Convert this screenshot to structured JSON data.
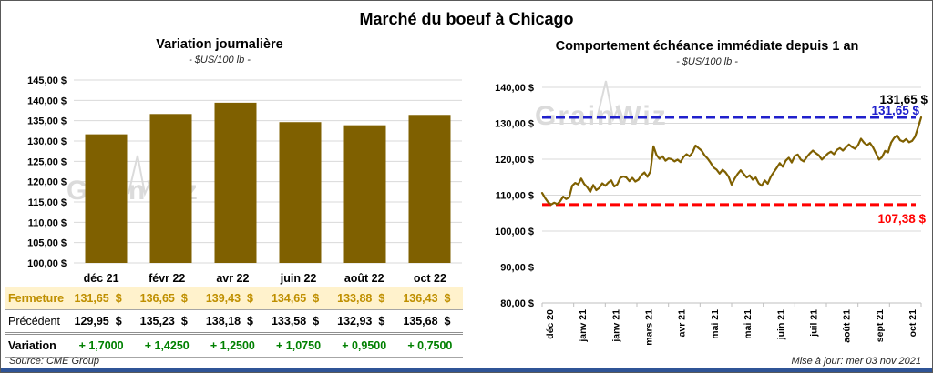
{
  "page": {
    "title": "Marché du boeuf à Chicago",
    "source": "Source: CME Group",
    "updated": "Mise à jour: mer 03 nov 2021",
    "watermark": "GrainWiz"
  },
  "colors": {
    "gold_series": "#7F6000",
    "max_ref_blue": "#2020CC",
    "min_ref_red": "#FF0000",
    "fermeture_text": "#BF8F00",
    "fermeture_bg": "#FFF2CC",
    "variation_green": "#008000",
    "grid": "#D9D9D9",
    "bottom_bar": "#2F5496"
  },
  "chart_data": [
    {
      "type": "bar",
      "title": "Variation journalière",
      "subtitle": "- $US/100 lb -",
      "categories": [
        "déc 21",
        "févr 22",
        "avr 22",
        "juin 22",
        "août 22",
        "oct 22"
      ],
      "values": [
        131.65,
        136.65,
        139.43,
        134.65,
        133.88,
        136.43
      ],
      "ylim": [
        100,
        145
      ],
      "ytick_step": 5,
      "ytick_labels": [
        "145,00 $",
        "140,00 $",
        "135,00 $",
        "130,00 $",
        "125,00 $",
        "120,00 $",
        "115,00 $",
        "110,00 $",
        "105,00 $",
        "100,00 $"
      ],
      "bar_color": "#7F6000",
      "grid": true
    },
    {
      "type": "line",
      "title": "Comportement échéance immédiate depuis 1 an",
      "subtitle": "- $US/100 lb -",
      "x_tick_labels": [
        "déc 20",
        "janv 21",
        "janv 21",
        "mars 21",
        "avr 21",
        "mai 21",
        "mai 21",
        "juin 21",
        "juil 21",
        "août 21",
        "sept 21",
        "oct 21"
      ],
      "ylim": [
        80,
        140
      ],
      "ytick_step": 10,
      "ytick_labels": [
        "140,00 $",
        "130,00 $",
        "120,00 $",
        "110,00 $",
        "100,00 $",
        "90,00 $",
        "80,00 $"
      ],
      "line_color": "#7F6000",
      "grid": true,
      "max_ref": {
        "value": 131.65,
        "label": "131,65 $",
        "color": "#2020CC"
      },
      "min_ref": {
        "value": 107.38,
        "label": "107,38 $",
        "color": "#FF0000"
      },
      "last_point_label": "131,65 $",
      "values_note": "approximate daily front-month closes read from plot, déc 2020 à nov 2021",
      "values": [
        110.6,
        109.2,
        108.0,
        107.38,
        107.9,
        107.5,
        108.3,
        109.6,
        108.9,
        109.4,
        112.6,
        113.4,
        113.0,
        114.6,
        113.1,
        112.2,
        110.9,
        112.8,
        111.4,
        112.0,
        113.3,
        112.6,
        113.5,
        114.1,
        112.4,
        113.0,
        114.8,
        115.2,
        114.9,
        113.9,
        114.8,
        113.8,
        114.3,
        115.6,
        116.3,
        115.1,
        116.6,
        123.6,
        121.2,
        120.1,
        120.8,
        119.6,
        120.2,
        120.0,
        119.4,
        119.9,
        119.2,
        120.6,
        121.4,
        120.8,
        121.9,
        123.8,
        123.1,
        122.4,
        121.1,
        120.2,
        119.0,
        117.7,
        117.1,
        116.0,
        117.1,
        116.3,
        115.1,
        112.9,
        114.6,
        115.9,
        116.9,
        115.9,
        114.9,
        115.5,
        114.3,
        114.9,
        113.3,
        112.6,
        114.1,
        113.2,
        115.1,
        116.4,
        117.6,
        118.9,
        117.9,
        119.6,
        120.4,
        119.1,
        120.9,
        121.3,
        119.9,
        119.4,
        120.6,
        121.6,
        122.4,
        121.7,
        121.1,
        119.9,
        120.7,
        121.6,
        122.1,
        121.4,
        122.6,
        123.1,
        122.4,
        123.3,
        124.1,
        123.4,
        122.9,
        123.9,
        125.7,
        124.6,
        123.9,
        124.5,
        123.3,
        121.6,
        119.9,
        120.6,
        122.3,
        121.9,
        124.6,
        125.9,
        126.6,
        125.3,
        124.9,
        125.6,
        124.7,
        125.1,
        126.3,
        128.9,
        131.65
      ]
    }
  ],
  "table": {
    "columns": [
      "déc 21",
      "févr 22",
      "avr 22",
      "juin 22",
      "août 22",
      "oct 22"
    ],
    "rows": [
      {
        "label": "Fermeture",
        "values": [
          "131,65 $",
          "136,65 $",
          "139,43 $",
          "134,65 $",
          "133,88 $",
          "136,43 $"
        ]
      },
      {
        "label": "Précédent",
        "values": [
          "129,95 $",
          "135,23 $",
          "138,18 $",
          "133,58 $",
          "132,93 $",
          "135,68 $"
        ]
      },
      {
        "label": "Variation",
        "values": [
          "+ 1,7000",
          "+ 1,4250",
          "+ 1,2500",
          "+ 1,0750",
          "+ 0,9500",
          "+ 0,7500"
        ]
      }
    ]
  }
}
